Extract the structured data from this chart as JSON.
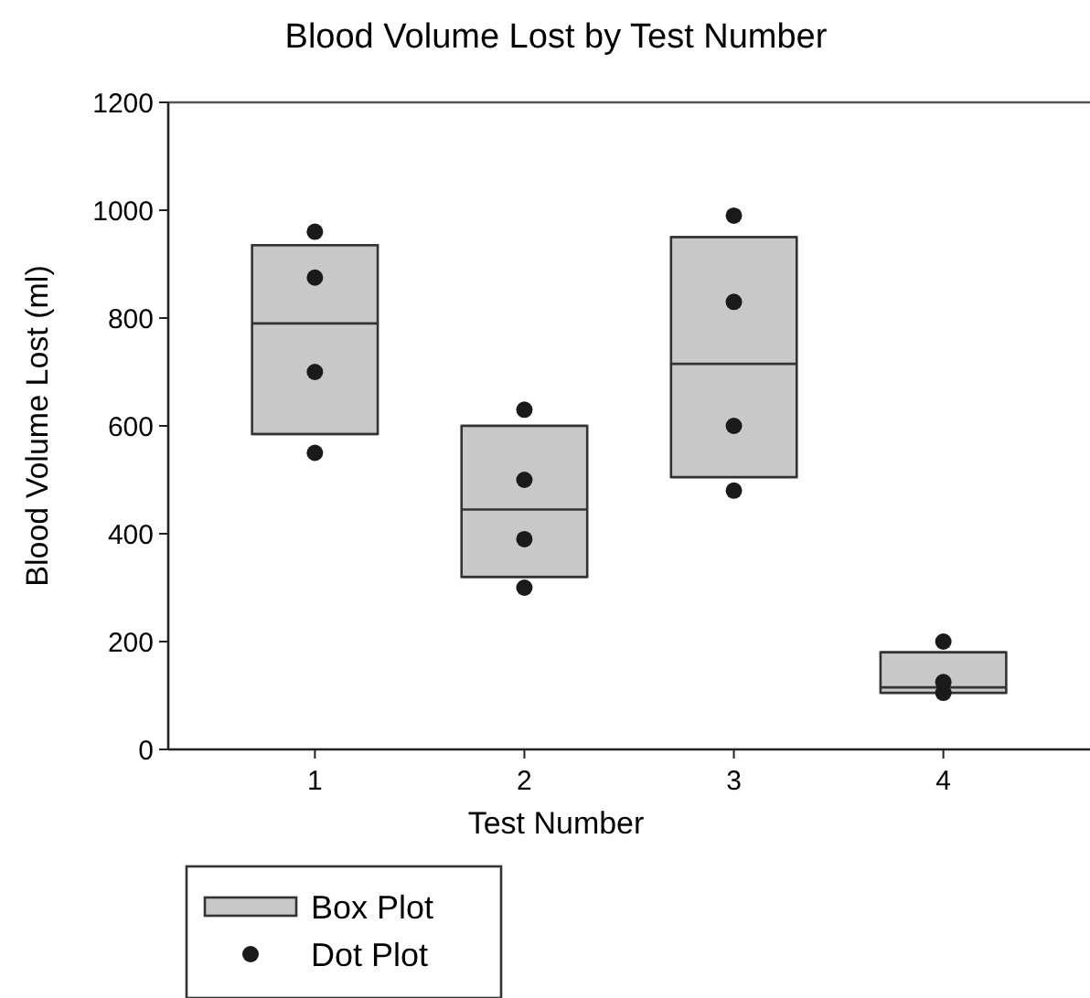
{
  "chart_data": {
    "type": "box",
    "title": "Blood Volume Lost by Test Number",
    "xlabel": "Test Number",
    "ylabel": "Blood Volume Lost (ml)",
    "categories": [
      "1",
      "2",
      "3",
      "4"
    ],
    "ylim": [
      0,
      1200
    ],
    "yticks": [
      0,
      200,
      400,
      600,
      800,
      1000,
      1200
    ],
    "grid": false,
    "legend": "bottom left",
    "series": [
      {
        "name": "Box Plot",
        "color": "#c8c8c8",
        "boxes": [
          {
            "low": 585,
            "q1": 585,
            "median": 790,
            "q3": 935,
            "high": 935
          },
          {
            "low": 320,
            "q1": 320,
            "median": 445,
            "q3": 600,
            "high": 600
          },
          {
            "low": 505,
            "q1": 505,
            "median": 715,
            "q3": 950,
            "high": 950
          },
          {
            "low": 105,
            "q1": 105,
            "median": 115,
            "q3": 180,
            "high": 180
          }
        ]
      },
      {
        "name": "Dot Plot",
        "type": "scatter",
        "color": "#1a1a1a",
        "marker": "circle",
        "x": [
          "1",
          "1",
          "1",
          "1",
          "2",
          "2",
          "2",
          "2",
          "3",
          "3",
          "3",
          "3",
          "4",
          "4",
          "4"
        ],
        "values": [
          960,
          875,
          700,
          550,
          630,
          500,
          390,
          300,
          990,
          830,
          600,
          480,
          200,
          125,
          105
        ]
      }
    ]
  }
}
